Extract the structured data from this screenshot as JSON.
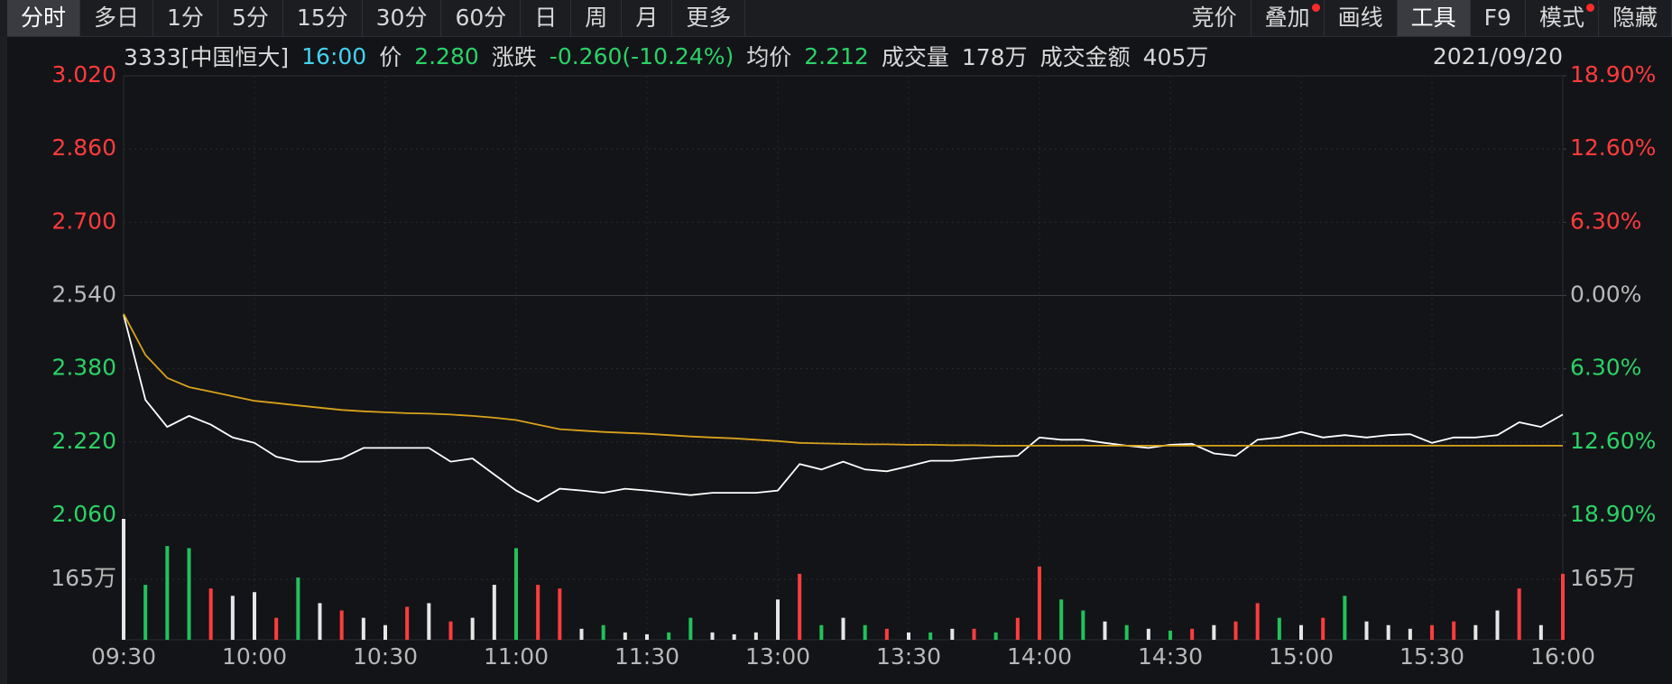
{
  "toolbar": {
    "left_tabs": [
      "分时",
      "多日",
      "1分",
      "5分",
      "15分",
      "30分",
      "60分",
      "日",
      "周",
      "月",
      "更多"
    ],
    "left_selected": 0,
    "right_tabs": [
      "竞价",
      "叠加",
      "画线",
      "工具",
      "F9",
      "模式",
      "隐藏"
    ],
    "right_selected": 3
  },
  "info": {
    "code": "3333[中国恒大]",
    "time": "16:00",
    "price_label": "价",
    "price": "2.280",
    "change_label": "涨跌",
    "change": "-0.260(-10.24%)",
    "avg_label": "均价",
    "avg": "2.212",
    "volume_label": "成交量",
    "volume": "178万",
    "amount_label": "成交金额",
    "amount": "405万",
    "date": "2021/09/20"
  },
  "chart_data": [
    {
      "type": "line",
      "x": [
        0,
        5,
        10,
        15,
        20,
        25,
        30,
        35,
        40,
        45,
        50,
        55,
        60,
        65,
        70,
        75,
        80,
        85,
        90,
        95,
        100,
        105,
        110,
        115,
        120,
        125,
        130,
        135,
        140,
        145,
        150,
        155,
        160,
        165,
        170,
        175,
        180,
        185,
        190,
        195,
        200,
        205,
        210,
        215,
        220,
        225,
        230,
        235,
        240,
        245,
        250,
        255,
        260,
        265,
        270,
        275,
        280,
        285,
        290,
        295,
        300,
        305,
        310,
        315,
        320,
        325,
        330
      ],
      "xlim": [
        0,
        330
      ],
      "xticks": [
        {
          "value": 0,
          "label": "09:30"
        },
        {
          "value": 30,
          "label": "10:00"
        },
        {
          "value": 60,
          "label": "10:30"
        },
        {
          "value": 90,
          "label": "11:00"
        },
        {
          "value": 120,
          "label": "11:30"
        },
        {
          "value": 150,
          "label": "13:00"
        },
        {
          "value": 180,
          "label": "13:30"
        },
        {
          "value": 210,
          "label": "14:00"
        },
        {
          "value": 240,
          "label": "14:30"
        },
        {
          "value": 270,
          "label": "15:00"
        },
        {
          "value": 300,
          "label": "15:30"
        },
        {
          "value": 330,
          "label": "16:00"
        }
      ],
      "ylim": [
        2.06,
        3.02
      ],
      "yticks": [
        {
          "value": 3.02,
          "label": "3.020"
        },
        {
          "value": 2.86,
          "label": "2.860"
        },
        {
          "value": 2.7,
          "label": "2.700"
        },
        {
          "value": 2.54,
          "label": "2.540"
        },
        {
          "value": 2.38,
          "label": "2.380"
        },
        {
          "value": 2.22,
          "label": "2.220"
        },
        {
          "value": 2.06,
          "label": "2.060"
        }
      ],
      "y2lim": [
        -18.9,
        18.9
      ],
      "y2ticks": [
        {
          "value": 18.9,
          "label": "18.90%"
        },
        {
          "value": 12.6,
          "label": "12.60%"
        },
        {
          "value": 6.3,
          "label": "6.30%"
        },
        {
          "value": 0,
          "label": "0.00%"
        },
        {
          "value": -6.3,
          "label": "6.30%"
        },
        {
          "value": -12.6,
          "label": "12.60%"
        },
        {
          "value": -18.9,
          "label": "18.90%"
        }
      ],
      "grid": true,
      "series": [
        {
          "color": "#ffffff",
          "values": [
            2.498,
            2.312,
            2.253,
            2.277,
            2.258,
            2.23,
            2.218,
            2.188,
            2.177,
            2.177,
            2.184,
            2.207,
            2.207,
            2.207,
            2.207,
            2.177,
            2.184,
            2.149,
            2.114,
            2.09,
            2.118,
            2.114,
            2.109,
            2.118,
            2.114,
            2.109,
            2.104,
            2.109,
            2.109,
            2.109,
            2.114,
            2.172,
            2.16,
            2.177,
            2.16,
            2.156,
            2.167,
            2.179,
            2.179,
            2.184,
            2.188,
            2.19,
            2.23,
            2.225,
            2.225,
            2.218,
            2.212,
            2.207,
            2.214,
            2.216,
            2.195,
            2.19,
            2.225,
            2.23,
            2.242,
            2.23,
            2.235,
            2.23,
            2.235,
            2.237,
            2.218,
            2.23,
            2.23,
            2.235,
            2.263,
            2.253,
            2.28
          ]
        },
        {
          "color": "#d9a21b",
          "values": [
            2.5,
            2.41,
            2.36,
            2.34,
            2.33,
            2.32,
            2.31,
            2.305,
            2.3,
            2.295,
            2.29,
            2.287,
            2.285,
            2.283,
            2.282,
            2.28,
            2.277,
            2.273,
            2.268,
            2.258,
            2.248,
            2.245,
            2.242,
            2.24,
            2.238,
            2.235,
            2.232,
            2.23,
            2.228,
            2.225,
            2.222,
            2.218,
            2.217,
            2.216,
            2.215,
            2.215,
            2.214,
            2.214,
            2.213,
            2.213,
            2.212,
            2.212,
            2.212,
            2.212,
            2.212,
            2.212,
            2.212,
            2.212,
            2.212,
            2.212,
            2.212,
            2.212,
            2.212,
            2.212,
            2.212,
            2.212,
            2.212,
            2.212,
            2.212,
            2.212,
            2.212,
            2.212,
            2.212,
            2.212,
            2.212,
            2.212,
            2.212
          ]
        }
      ]
    },
    {
      "type": "bar",
      "x": [
        0,
        5,
        10,
        15,
        20,
        25,
        30,
        35,
        40,
        45,
        50,
        55,
        60,
        65,
        70,
        75,
        80,
        85,
        90,
        95,
        100,
        105,
        110,
        115,
        120,
        125,
        130,
        135,
        140,
        145,
        150,
        155,
        160,
        165,
        170,
        175,
        180,
        185,
        190,
        195,
        200,
        205,
        210,
        215,
        220,
        225,
        230,
        235,
        240,
        245,
        250,
        255,
        260,
        265,
        270,
        275,
        280,
        285,
        290,
        295,
        300,
        305,
        310,
        315,
        320,
        325,
        330
      ],
      "values": [
        330,
        150,
        256,
        250,
        140,
        120,
        130,
        60,
        170,
        100,
        80,
        60,
        40,
        90,
        100,
        50,
        60,
        150,
        250,
        150,
        140,
        30,
        40,
        20,
        15,
        20,
        60,
        20,
        15,
        20,
        110,
        180,
        40,
        60,
        40,
        30,
        20,
        20,
        30,
        30,
        20,
        60,
        200,
        110,
        80,
        50,
        40,
        30,
        25,
        30,
        40,
        50,
        100,
        60,
        40,
        60,
        120,
        50,
        40,
        30,
        40,
        50,
        40,
        80,
        140,
        40,
        180
      ],
      "colors": [
        "#e6e6e6",
        "#22c25a",
        "#22c25a",
        "#22c25a",
        "#ff3d3d",
        "#e6e6e6",
        "#e6e6e6",
        "#ff3d3d",
        "#22c25a",
        "#e6e6e6",
        "#ff3d3d",
        "#e6e6e6",
        "#e6e6e6",
        "#ff3d3d",
        "#e6e6e6",
        "#ff3d3d",
        "#e6e6e6",
        "#e6e6e6",
        "#22c25a",
        "#ff3d3d",
        "#ff3d3d",
        "#e6e6e6",
        "#22c25a",
        "#e6e6e6",
        "#e6e6e6",
        "#22c25a",
        "#22c25a",
        "#e6e6e6",
        "#e6e6e6",
        "#e6e6e6",
        "#e6e6e6",
        "#ff3d3d",
        "#22c25a",
        "#e6e6e6",
        "#22c25a",
        "#ff3d3d",
        "#e6e6e6",
        "#22c25a",
        "#e6e6e6",
        "#ff3d3d",
        "#22c25a",
        "#ff3d3d",
        "#ff3d3d",
        "#22c25a",
        "#22c25a",
        "#e6e6e6",
        "#22c25a",
        "#e6e6e6",
        "#22c25a",
        "#ff3d3d",
        "#e6e6e6",
        "#ff3d3d",
        "#ff3d3d",
        "#22c25a",
        "#e6e6e6",
        "#ff3d3d",
        "#22c25a",
        "#e6e6e6",
        "#e6e6e6",
        "#e6e6e6",
        "#ff3d3d",
        "#ff3d3d",
        "#e6e6e6",
        "#e6e6e6",
        "#ff3d3d",
        "#e6e6e6",
        "#ff3d3d"
      ],
      "ylim": [
        0,
        330
      ],
      "yticks": [
        {
          "value": 165,
          "label": "165万"
        }
      ]
    }
  ]
}
